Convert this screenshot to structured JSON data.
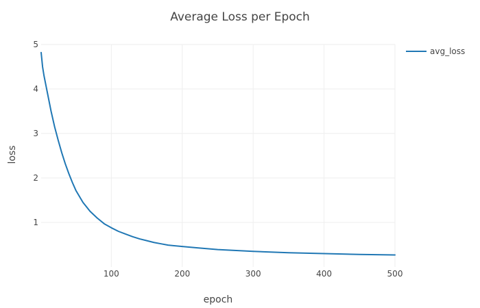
{
  "chart_data": {
    "type": "line",
    "title": "Average Loss per Epoch",
    "xlabel": "epoch",
    "ylabel": "loss",
    "xlim": [
      1,
      500
    ],
    "ylim": [
      0,
      5
    ],
    "x_ticks": [
      100,
      200,
      300,
      400,
      500
    ],
    "y_ticks": [
      1,
      2,
      3,
      4,
      5
    ],
    "grid": true,
    "legend_position": "top-right",
    "series": [
      {
        "name": "avg_loss",
        "color": "#1f77b4",
        "x": [
          1,
          3,
          5,
          10,
          15,
          20,
          25,
          30,
          35,
          40,
          45,
          50,
          60,
          70,
          80,
          90,
          100,
          110,
          120,
          130,
          140,
          150,
          160,
          170,
          180,
          200,
          220,
          250,
          300,
          350,
          400,
          450,
          500
        ],
        "y": [
          4.82,
          4.5,
          4.3,
          3.9,
          3.5,
          3.15,
          2.85,
          2.57,
          2.32,
          2.1,
          1.9,
          1.72,
          1.45,
          1.25,
          1.1,
          0.97,
          0.88,
          0.8,
          0.74,
          0.68,
          0.63,
          0.59,
          0.55,
          0.52,
          0.49,
          0.46,
          0.43,
          0.39,
          0.35,
          0.32,
          0.3,
          0.28,
          0.27
        ]
      }
    ]
  }
}
